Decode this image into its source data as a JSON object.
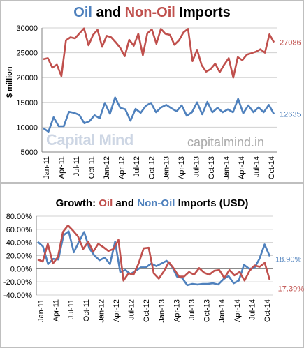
{
  "colors": {
    "oil": "#4f81bd",
    "non_oil": "#c0504d",
    "grid": "#d0d0d0",
    "axis": "#808080"
  },
  "watermarks": {
    "logo": "Capital Mind",
    "site": "capitalmind.in"
  },
  "chart_data": [
    {
      "type": "line",
      "title_parts": {
        "a": "Oil",
        "b": " and ",
        "c": "Non-Oil",
        "d": " Imports"
      },
      "ylabel": "$ million",
      "ylim": [
        5000,
        30000
      ],
      "yticks": [
        "30000",
        "25000",
        "20000",
        "15000",
        "10000",
        "5000"
      ],
      "xticks": [
        "Jan-11",
        "Apr-11",
        "Jul-11",
        "Oct-11",
        "Jan-12",
        "Apr-12",
        "Jul-12",
        "Oct-12",
        "Jan-13",
        "Apr-13",
        "Jul-13",
        "Oct-13",
        "Jan-14",
        "Apr-14",
        "Jul-14",
        "Oct-14"
      ],
      "series": [
        {
          "key": "oil",
          "values": [
            9800,
            9100,
            12000,
            10200,
            10200,
            13100,
            12900,
            12500,
            10800,
            11200,
            12400,
            11800,
            14900,
            12700,
            16000,
            13900,
            13600,
            11300,
            13700,
            12900,
            14300,
            14900,
            13000,
            14000,
            14500,
            13800,
            13200,
            14400,
            12300,
            13000,
            15000,
            12600,
            15100,
            13000,
            13900,
            13000,
            13600,
            13000,
            15700,
            12800,
            14400,
            13000,
            14000,
            13000,
            14500,
            12635
          ]
        },
        {
          "key": "non_oil",
          "values": [
            23700,
            23900,
            22000,
            22600,
            20300,
            27500,
            28100,
            27900,
            28900,
            29900,
            26500,
            28600,
            29600,
            26200,
            28400,
            28100,
            27100,
            26000,
            24300,
            27600,
            26400,
            28800,
            24500,
            28900,
            29700,
            26800,
            29800,
            28800,
            28600,
            26600,
            27500,
            29100,
            29800,
            23300,
            25600,
            22500,
            21200,
            21700,
            22800,
            21100,
            22600,
            23900,
            20000,
            24100,
            23500,
            24600,
            24900,
            25200,
            25700,
            25000,
            28700,
            27086
          ]
        },
        {
          "key": "oil_end_label",
          "value": "12635"
        },
        {
          "key": "non_oil_end_label",
          "value": "27086"
        }
      ]
    },
    {
      "type": "line",
      "title_parts": {
        "a": "Growth: ",
        "b": "Oil",
        "c": " and ",
        "d": "Non-Oil",
        "e": " Imports (USD)"
      },
      "ylim": [
        -40,
        80
      ],
      "yticks": [
        "80.00%",
        "60.00%",
        "40.00%",
        "20.00%",
        "0.00%",
        "-20.00%",
        "-40.00%"
      ],
      "xticks": [
        "Jan-11",
        "Apr-11",
        "Jul-11",
        "Oct-11",
        "Jan-12",
        "Apr-12",
        "Jul-12",
        "Oct-12",
        "Jan-13",
        "Apr-13",
        "Jul-13",
        "Oct-13",
        "Jan-14",
        "Apr-14",
        "Jul-14",
        "Oct-14"
      ],
      "series": [
        {
          "key": "oil",
          "values": [
            41,
            34,
            7,
            15,
            14,
            51,
            57,
            25,
            41,
            56,
            31,
            20,
            13,
            17,
            7,
            41,
            -5,
            -2,
            -8,
            -3,
            2,
            2,
            8,
            4,
            8,
            12,
            4,
            -12,
            -14,
            -25,
            -23,
            -24,
            -23,
            -23,
            -22,
            -24,
            -16,
            -11,
            -22,
            -18,
            6,
            0,
            1,
            15,
            37,
            18.9
          ]
        },
        {
          "key": "non_oil",
          "values": [
            14,
            11,
            38,
            8,
            18,
            56,
            66,
            58,
            49,
            30,
            41,
            26,
            38,
            33,
            27,
            30,
            44,
            -18,
            -7,
            -9,
            8,
            31,
            32,
            -7,
            -15,
            -4,
            10,
            0,
            -12,
            -12,
            -5,
            -9,
            1,
            -6,
            -9,
            -3,
            -2,
            -14,
            -2,
            -10,
            -5,
            -18,
            -3,
            5,
            3,
            9,
            -17.39
          ]
        },
        {
          "key": "oil_end_label",
          "value": "18.90%"
        },
        {
          "key": "non_oil_end_label",
          "value": "-17.39%"
        }
      ]
    }
  ]
}
